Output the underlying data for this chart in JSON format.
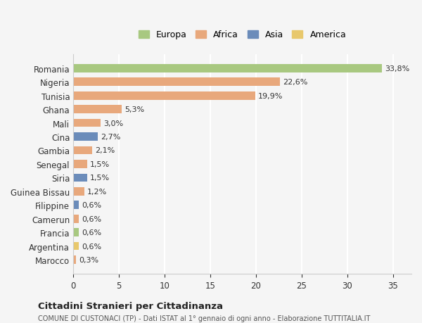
{
  "countries": [
    "Romania",
    "Nigeria",
    "Tunisia",
    "Ghana",
    "Mali",
    "Cina",
    "Gambia",
    "Senegal",
    "Siria",
    "Guinea Bissau",
    "Filippine",
    "Camerun",
    "Francia",
    "Argentina",
    "Marocco"
  ],
  "values": [
    33.8,
    22.6,
    19.9,
    5.3,
    3.0,
    2.7,
    2.1,
    1.5,
    1.5,
    1.2,
    0.6,
    0.6,
    0.6,
    0.6,
    0.3
  ],
  "labels": [
    "33,8%",
    "22,6%",
    "19,9%",
    "5,3%",
    "3,0%",
    "2,7%",
    "2,1%",
    "1,5%",
    "1,5%",
    "1,2%",
    "0,6%",
    "0,6%",
    "0,6%",
    "0,6%",
    "0,3%"
  ],
  "continents": [
    "Europa",
    "Africa",
    "Africa",
    "Africa",
    "Africa",
    "Asia",
    "Africa",
    "Africa",
    "Asia",
    "Africa",
    "Asia",
    "Africa",
    "Europa",
    "America",
    "Africa"
  ],
  "colors": {
    "Europa": "#a8c880",
    "Africa": "#e8a87c",
    "Asia": "#6b8cba",
    "America": "#e8c86c"
  },
  "legend_order": [
    "Europa",
    "Africa",
    "Asia",
    "America"
  ],
  "legend_colors": [
    "#a8c880",
    "#e8a87c",
    "#6b8cba",
    "#e8c86c"
  ],
  "bg_color": "#f5f5f5",
  "grid_color": "#ffffff",
  "title_main": "Cittadini Stranieri per Cittadinanza",
  "title_sub": "COMUNE DI CUSTONACI (TP) - Dati ISTAT al 1° gennaio di ogni anno - Elaborazione TUTTITALIA.IT",
  "xlim": [
    0,
    37
  ],
  "xticks": [
    0,
    5,
    10,
    15,
    20,
    25,
    30,
    35
  ]
}
